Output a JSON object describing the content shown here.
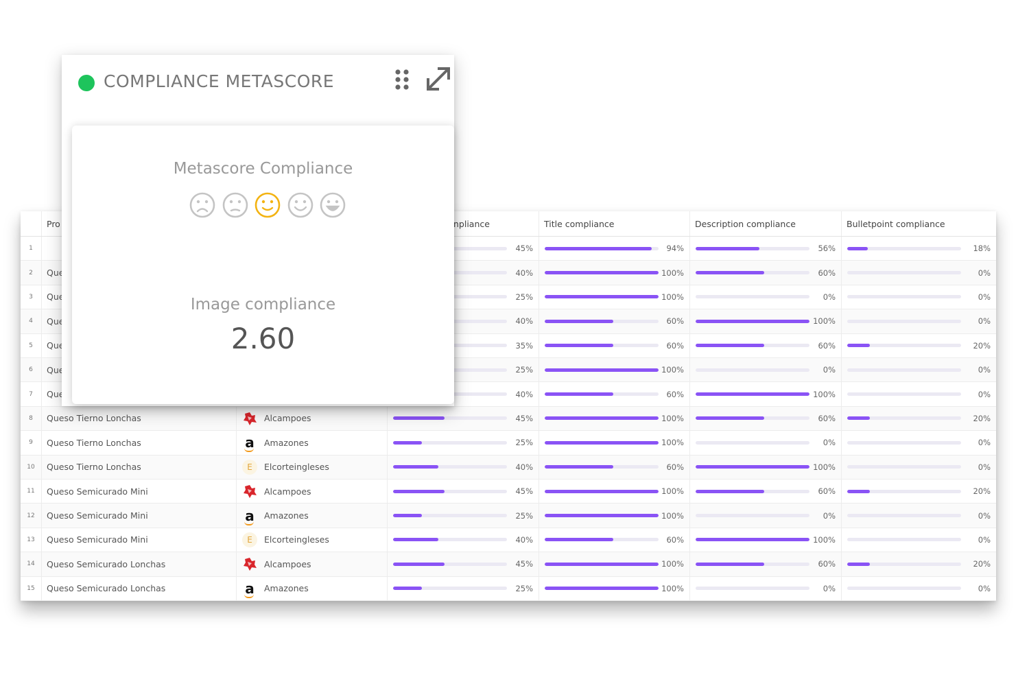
{
  "widget": {
    "title": "COMPLIANCE METASCORE",
    "status_color": "#1ec45c",
    "metascore_label": "Metascore Compliance",
    "faces": [
      {
        "icon": "very-sad-face-icon",
        "active": false
      },
      {
        "icon": "sad-face-icon",
        "active": false
      },
      {
        "icon": "neutral-smile-face-icon",
        "active": true
      },
      {
        "icon": "happy-face-icon",
        "active": false
      },
      {
        "icon": "very-happy-face-icon",
        "active": false
      }
    ],
    "image_label": "Image compliance",
    "image_value": "2.60"
  },
  "table": {
    "headers": {
      "product": "Pro",
      "image": "npliance",
      "title": "Title compliance",
      "description": "Description compliance",
      "bulletpoint": "Bulletpoint compliance"
    },
    "accent_color": "#8a53f5",
    "rows": [
      {
        "num": "1",
        "product": "",
        "retailer": "",
        "logo": "",
        "image": 45,
        "title": 94,
        "description": 56,
        "bullet": 18
      },
      {
        "num": "2",
        "product": "Que",
        "retailer": "",
        "logo": "",
        "image": 40,
        "title": 100,
        "description": 60,
        "bullet": 0
      },
      {
        "num": "3",
        "product": "Que",
        "retailer": "",
        "logo": "",
        "image": 25,
        "title": 100,
        "description": 0,
        "bullet": 0
      },
      {
        "num": "4",
        "product": "Que",
        "retailer": "",
        "logo": "",
        "image": 40,
        "title": 60,
        "description": 100,
        "bullet": 0
      },
      {
        "num": "5",
        "product": "Que",
        "retailer": "",
        "logo": "",
        "image": 35,
        "title": 60,
        "description": 60,
        "bullet": 20
      },
      {
        "num": "6",
        "product": "Que",
        "retailer": "",
        "logo": "",
        "image": 25,
        "title": 100,
        "description": 0,
        "bullet": 0
      },
      {
        "num": "7",
        "product": "Que",
        "retailer": "",
        "logo": "",
        "image": 40,
        "title": 60,
        "description": 100,
        "bullet": 0
      },
      {
        "num": "8",
        "product": "Queso Tierno Lonchas",
        "retailer": "Alcampoes",
        "logo": "alcampo",
        "image": 45,
        "title": 100,
        "description": 60,
        "bullet": 20
      },
      {
        "num": "9",
        "product": "Queso Tierno Lonchas",
        "retailer": "Amazones",
        "logo": "amazon",
        "image": 25,
        "title": 100,
        "description": 0,
        "bullet": 0
      },
      {
        "num": "10",
        "product": "Queso Tierno Lonchas",
        "retailer": "Elcorteingleses",
        "logo": "eci",
        "image": 40,
        "title": 60,
        "description": 100,
        "bullet": 0
      },
      {
        "num": "11",
        "product": "Queso Semicurado Mini",
        "retailer": "Alcampoes",
        "logo": "alcampo",
        "image": 45,
        "title": 100,
        "description": 60,
        "bullet": 20
      },
      {
        "num": "12",
        "product": "Queso Semicurado Mini",
        "retailer": "Amazones",
        "logo": "amazon",
        "image": 25,
        "title": 100,
        "description": 0,
        "bullet": 0
      },
      {
        "num": "13",
        "product": "Queso Semicurado Mini",
        "retailer": "Elcorteingleses",
        "logo": "eci",
        "image": 40,
        "title": 60,
        "description": 100,
        "bullet": 0
      },
      {
        "num": "14",
        "product": "Queso Semicurado Lonchas",
        "retailer": "Alcampoes",
        "logo": "alcampo",
        "image": 45,
        "title": 100,
        "description": 60,
        "bullet": 20
      },
      {
        "num": "15",
        "product": "Queso Semicurado Lonchas",
        "retailer": "Amazones",
        "logo": "amazon",
        "image": 25,
        "title": 100,
        "description": 0,
        "bullet": 0
      }
    ]
  }
}
